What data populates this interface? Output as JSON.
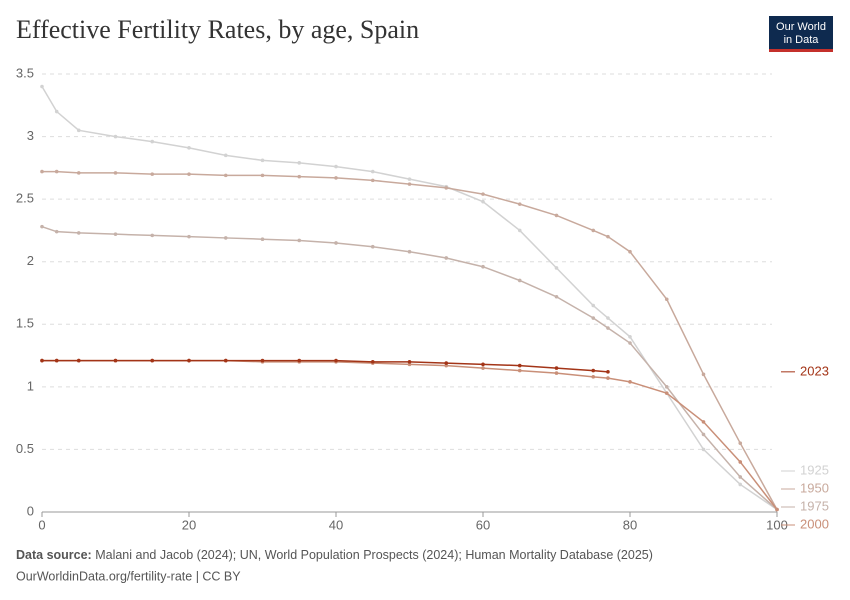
{
  "chart_data": {
    "type": "line",
    "title": "Effective Fertility Rates, by age, Spain",
    "logo": [
      "Our World",
      "in Data"
    ],
    "source_label": "Data source:",
    "source_text": "Malani and Jacob (2024); UN, World Population Prospects (2024); Human Mortality Database (2025)",
    "url_line": "OurWorldinData.org/fertility-rate | CC BY",
    "x": [
      0,
      2,
      5,
      10,
      15,
      20,
      25,
      30,
      35,
      40,
      45,
      50,
      55,
      60,
      65,
      70,
      75,
      77,
      80,
      85,
      90,
      95,
      100
    ],
    "xlim": [
      0,
      100
    ],
    "xticks": [
      0,
      20,
      40,
      60,
      80,
      100
    ],
    "ylim": [
      0,
      3.5
    ],
    "yticks": [
      0,
      0.5,
      1,
      1.5,
      2,
      2.5,
      3,
      3.5
    ],
    "grid": true,
    "series": [
      {
        "name": "1925",
        "color": "#d2d2d2",
        "values": [
          3.4,
          3.2,
          3.05,
          3.0,
          2.96,
          2.91,
          2.85,
          2.81,
          2.79,
          2.76,
          2.72,
          2.66,
          2.6,
          2.48,
          2.25,
          1.95,
          1.65,
          1.55,
          1.4,
          0.95,
          0.5,
          0.22,
          0.02
        ]
      },
      {
        "name": "1950",
        "color": "#c8a99c",
        "values": [
          2.72,
          2.72,
          2.71,
          2.71,
          2.7,
          2.7,
          2.69,
          2.69,
          2.68,
          2.67,
          2.65,
          2.62,
          2.59,
          2.54,
          2.46,
          2.37,
          2.25,
          2.2,
          2.08,
          1.7,
          1.1,
          0.55,
          0.02
        ]
      },
      {
        "name": "1975",
        "color": "#c5b2aa",
        "values": [
          2.28,
          2.24,
          2.23,
          2.22,
          2.21,
          2.2,
          2.19,
          2.18,
          2.17,
          2.15,
          2.12,
          2.08,
          2.03,
          1.96,
          1.85,
          1.72,
          1.55,
          1.47,
          1.35,
          1.0,
          0.62,
          0.28,
          0.02
        ]
      },
      {
        "name": "2000",
        "color": "#c98f78",
        "values": [
          1.21,
          1.21,
          1.21,
          1.21,
          1.21,
          1.21,
          1.21,
          1.2,
          1.2,
          1.2,
          1.19,
          1.18,
          1.17,
          1.15,
          1.13,
          1.11,
          1.08,
          1.07,
          1.04,
          0.95,
          0.72,
          0.4,
          0.02
        ]
      },
      {
        "name": "2023",
        "color": "#a33417",
        "values": [
          1.21,
          1.21,
          1.21,
          1.21,
          1.21,
          1.21,
          1.21,
          1.21,
          1.21,
          1.21,
          1.2,
          1.2,
          1.19,
          1.18,
          1.17,
          1.15,
          1.13,
          1.12,
          null,
          null,
          null,
          null,
          null
        ]
      }
    ]
  }
}
